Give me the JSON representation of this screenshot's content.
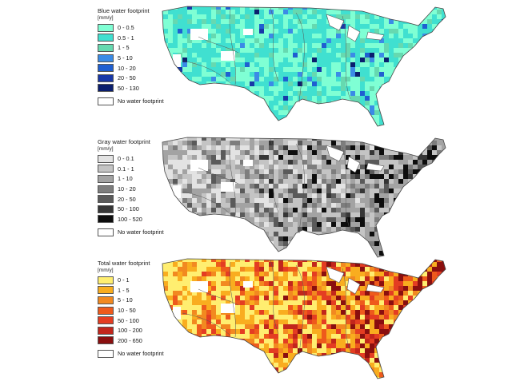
{
  "panels": [
    {
      "id": "blue",
      "title": "Blue water footprint",
      "unit": "[mm/y]",
      "classes": [
        {
          "label": "0 - 0.5",
          "color": "#7fffd4"
        },
        {
          "label": "0.5 - 1",
          "color": "#40e0d0"
        },
        {
          "label": "1 - 5",
          "color": "#66d9b0"
        },
        {
          "label": "5 - 10",
          "color": "#3b8be6"
        },
        {
          "label": "10 - 20",
          "color": "#1f5fd1"
        },
        {
          "label": "20 - 50",
          "color": "#1838a8"
        },
        {
          "label": "50 - 130",
          "color": "#0a1e6e"
        }
      ],
      "no_fp_label": "No water footprint"
    },
    {
      "id": "gray",
      "title": "Gray water footprint",
      "unit": "[mm/y]",
      "classes": [
        {
          "label": "0 - 0.1",
          "color": "#e3e3e3"
        },
        {
          "label": "0.1 - 1",
          "color": "#c4c4c4"
        },
        {
          "label": "1 - 10",
          "color": "#a3a3a3"
        },
        {
          "label": "10 - 20",
          "color": "#7d7d7d"
        },
        {
          "label": "20 - 50",
          "color": "#5a5a5a"
        },
        {
          "label": "50 - 100",
          "color": "#363636"
        },
        {
          "label": "100 - 520",
          "color": "#0d0d0d"
        }
      ],
      "no_fp_label": "No water footprint"
    },
    {
      "id": "total",
      "title": "Total water footprint",
      "unit": "[mm/y]",
      "classes": [
        {
          "label": "0 - 1",
          "color": "#ffee70"
        },
        {
          "label": "1 - 5",
          "color": "#f9ad1f"
        },
        {
          "label": "5 - 10",
          "color": "#f28920"
        },
        {
          "label": "10 - 50",
          "color": "#ee5a1c"
        },
        {
          "label": "50 - 100",
          "color": "#e43d22"
        },
        {
          "label": "100 - 200",
          "color": "#c2261c"
        },
        {
          "label": "200 - 650",
          "color": "#8a0f0f"
        }
      ],
      "no_fp_label": "No water footprint"
    }
  ]
}
